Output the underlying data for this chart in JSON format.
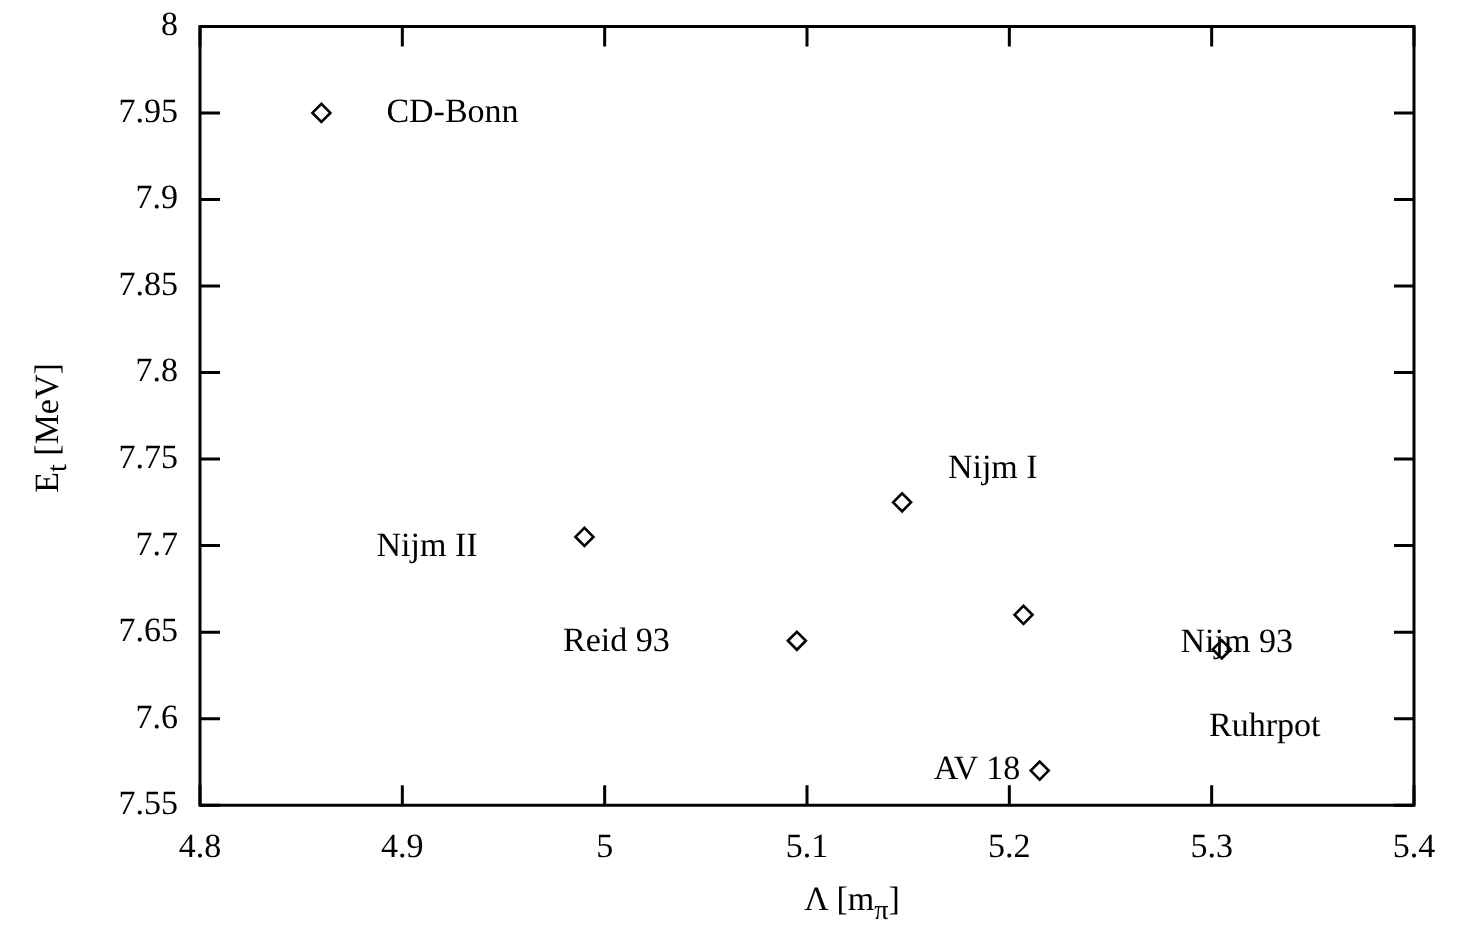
{
  "chart_data": {
    "type": "scatter",
    "xlabel": "Λ [m$_{π}$]",
    "ylabel": "E$_{t}$ [MeV]",
    "x": [
      4.86,
      4.99,
      5.095,
      5.147,
      5.207,
      5.305,
      5.215
    ],
    "series": [
      {
        "color": "#000000",
        "values": [
          7.95,
          7.705,
          7.645,
          7.725,
          7.66,
          7.64,
          7.57
        ]
      }
    ],
    "marker": "diamond",
    "xlim": [
      4.8,
      5.4
    ],
    "xticks": [
      4.8,
      4.9,
      5,
      5.1,
      5.2,
      5.3,
      5.4
    ],
    "ylim": [
      7.55,
      8
    ],
    "yticks": [
      7.55,
      7.6,
      7.65,
      7.7,
      7.75,
      7.8,
      7.85,
      7.9,
      7.95,
      8
    ],
    "annotations": [
      "CD-Bonn",
      "Nijm II",
      "Reid 93",
      "Nijm I",
      "Nijm 93",
      "Ruhrpot",
      "AV 18"
    ]
  }
}
